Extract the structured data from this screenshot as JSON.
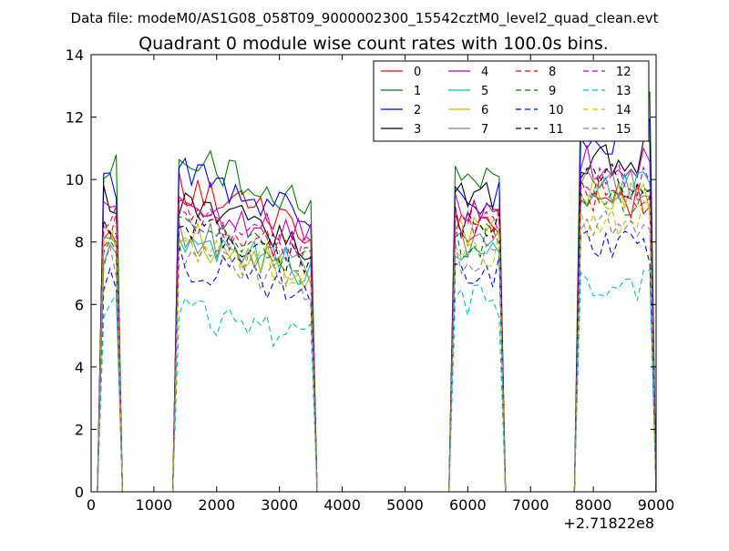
{
  "chart_data": {
    "type": "line",
    "supertitle": "Data file: modeM0/AS1G08_058T09_9000002300_15542cztM0_level2_quad_clean.evt",
    "title": "Quadrant 0 module wise count rates with 100.0s bins.",
    "xlabel": "",
    "ylabel": "",
    "x_offset_label": "+2.71822e8",
    "xlim": [
      0,
      9000
    ],
    "ylim": [
      0,
      14
    ],
    "x_ticks": [
      "0",
      "1000",
      "2000",
      "3000",
      "4000",
      "5000",
      "6000",
      "7000",
      "8000",
      "9000"
    ],
    "y_ticks": [
      "0",
      "2",
      "4",
      "6",
      "8",
      "10",
      "12",
      "14"
    ],
    "grid": false,
    "legend": {
      "placement": "top-right",
      "columns": 4
    },
    "segments": [
      {
        "x": [
          200,
          300,
          400
        ],
        "end": 500
      },
      {
        "x": [
          1400,
          1500,
          1600,
          1700,
          1800,
          1900,
          2000,
          2100,
          2200,
          2300,
          2400,
          2500,
          2600,
          2700,
          2800,
          2900,
          3000,
          3100,
          3200,
          3300,
          3400,
          3500
        ],
        "end": 3600
      },
      {
        "x": [
          5800,
          5900,
          6000,
          6100,
          6200,
          6300,
          6400,
          6500
        ],
        "end": 6600
      },
      {
        "x": [
          7800,
          7900,
          8000,
          8100,
          8200,
          8300,
          8400,
          8500,
          8600,
          8700,
          8800,
          8900
        ],
        "end": 9000
      }
    ],
    "gaps": [
      [
        500,
        1300
      ],
      [
        3600,
        5700
      ],
      [
        6700,
        7600
      ]
    ],
    "series": [
      {
        "name": "0",
        "color": "#ff0000",
        "dash": "solid",
        "levels": [
          8.5,
          9.7,
          8.6,
          9.3
        ]
      },
      {
        "name": "1",
        "color": "#008000",
        "dash": "solid",
        "levels": [
          10.2,
          10.8,
          10.2,
          12.5
        ]
      },
      {
        "name": "2",
        "color": "#0000ff",
        "dash": "solid",
        "levels": [
          9.8,
          10.3,
          9.4,
          11.4
        ]
      },
      {
        "name": "3",
        "color": "#000000",
        "dash": "solid",
        "levels": [
          9.3,
          9.2,
          9.6,
          10.7
        ]
      },
      {
        "name": "4",
        "color": "#bf00bf",
        "dash": "solid",
        "levels": [
          8.9,
          9.4,
          9.2,
          10.5
        ]
      },
      {
        "name": "5",
        "color": "#00bfbf",
        "dash": "solid",
        "levels": [
          7.8,
          8.2,
          8.0,
          9.7
        ]
      },
      {
        "name": "6",
        "color": "#bfbf00",
        "dash": "solid",
        "levels": [
          8.2,
          8.2,
          8.3,
          9.5
        ]
      },
      {
        "name": "7",
        "color": "#808080",
        "dash": "solid",
        "levels": [
          7.7,
          8.3,
          8.1,
          9.8
        ]
      },
      {
        "name": "8",
        "color": "#ff0000",
        "dash": "dashed",
        "levels": [
          8.4,
          8.8,
          8.7,
          9.5
        ]
      },
      {
        "name": "9",
        "color": "#008000",
        "dash": "dashed",
        "levels": [
          7.8,
          8.4,
          8.0,
          9.4
        ]
      },
      {
        "name": "10",
        "color": "#0000ff",
        "dash": "dashed",
        "levels": [
          7.0,
          7.4,
          7.0,
          7.8
        ]
      },
      {
        "name": "11",
        "color": "#000000",
        "dash": "dashed",
        "levels": [
          8.8,
          8.6,
          8.7,
          10.0
        ]
      },
      {
        "name": "12",
        "color": "#bf00bf",
        "dash": "dashed",
        "levels": [
          8.6,
          8.9,
          8.8,
          10.0
        ]
      },
      {
        "name": "13",
        "color": "#00bfbf",
        "dash": "dashed",
        "levels": [
          5.8,
          5.8,
          6.1,
          6.6
        ]
      },
      {
        "name": "14",
        "color": "#bfbf00",
        "dash": "dashed",
        "levels": [
          8.0,
          8.0,
          7.8,
          8.8
        ]
      },
      {
        "name": "15",
        "color": "#808080",
        "dash": "dashed",
        "levels": [
          7.4,
          7.7,
          7.5,
          8.4
        ]
      }
    ]
  }
}
